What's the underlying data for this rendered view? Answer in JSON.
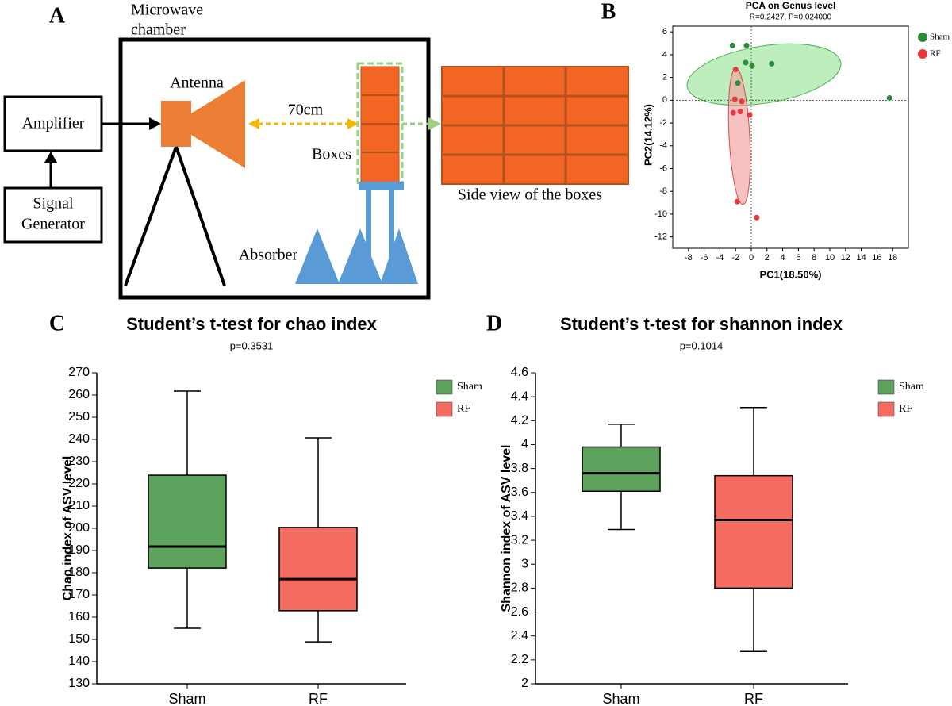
{
  "diagram": {
    "panel": "A",
    "chamber_label": [
      "Microwave",
      "chamber"
    ],
    "amplifier": "Amplifier",
    "signal_generator": [
      "Signal",
      "Generator"
    ],
    "antenna": "Antenna",
    "distance": "70cm",
    "boxes": "Boxes",
    "absorber": "Absorber",
    "side_view": "Side view of the boxes"
  },
  "chart_data": [
    {
      "type": "scatter",
      "panel": "B",
      "title": "PCA on Genus level",
      "subtitle": "R=0.2427, P=0.024000",
      "x_label": "PC1(18.50%)",
      "y_label": "PC2(14.12%)",
      "xlim": [
        -10,
        20
      ],
      "xticks": [
        -8,
        -6,
        -4,
        -2,
        0,
        2,
        4,
        6,
        8,
        10,
        12,
        14,
        16,
        18
      ],
      "ylim": [
        -13,
        6.5
      ],
      "yticks": [
        6,
        4,
        2,
        0,
        -2,
        -4,
        -6,
        -8,
        -10,
        -12
      ],
      "legend": "top-right",
      "series": [
        {
          "name": "Sham",
          "color": "#2e8b3a",
          "x": [
            -2.4,
            -0.6,
            -0.7,
            0.1,
            2.6,
            -1.7,
            -1.2,
            17.6
          ],
          "values": [
            4.8,
            4.8,
            3.3,
            3.0,
            3.2,
            1.5,
            -0.1,
            0.2
          ]
        },
        {
          "name": "RF",
          "color": "#e8383d",
          "x": [
            -2.0,
            -2.1,
            -1.2,
            -2.3,
            -1.4,
            -0.2,
            -1.8,
            0.7
          ],
          "values": [
            2.7,
            0.1,
            -0.1,
            -1.1,
            -1.0,
            -1.3,
            -8.9,
            -10.3
          ]
        }
      ]
    },
    {
      "type": "box",
      "panel": "C",
      "title": "Student’s t-test for chao index",
      "subtitle": "p=0.3531",
      "y_label": "Chao index of ASV level",
      "categories": [
        "Sham",
        "RF"
      ],
      "colors": [
        "#5da35d",
        "#f46b5f"
      ],
      "ylim": [
        130,
        270
      ],
      "yticks": [
        130,
        140,
        150,
        160,
        170,
        180,
        190,
        200,
        210,
        220,
        230,
        240,
        250,
        260,
        270
      ],
      "boxes": [
        {
          "min": 155,
          "q1": 182.1,
          "median": 191.8,
          "q3": 223.9,
          "max": 261.8
        },
        {
          "min": 148.9,
          "q1": 162.9,
          "median": 177.1,
          "q3": 200.4,
          "max": 240.7
        }
      ]
    },
    {
      "type": "box",
      "panel": "D",
      "title": "Student’s t-test for shannon index",
      "subtitle": "p=0.1014",
      "y_label": "Shannon index of ASV level",
      "categories": [
        "Sham",
        "RF"
      ],
      "colors": [
        "#5da35d",
        "#f46b5f"
      ],
      "ylim": [
        2,
        4.6
      ],
      "yticks": [
        2,
        2.2,
        2.4,
        2.6,
        2.8,
        3,
        3.2,
        3.4,
        3.6,
        3.8,
        4,
        4.2,
        4.4,
        4.6
      ],
      "boxes": [
        {
          "min": 3.29,
          "q1": 3.61,
          "median": 3.76,
          "q3": 3.98,
          "max": 4.17
        },
        {
          "min": 2.27,
          "q1": 2.8,
          "median": 3.37,
          "q3": 3.74,
          "max": 4.31
        }
      ]
    }
  ]
}
